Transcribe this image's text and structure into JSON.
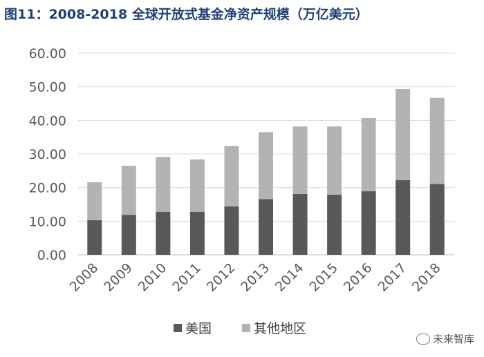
{
  "title": "图11：2008-2018 全球开放式基金净资产规模（万亿美元）",
  "watermark": "未来智库",
  "chart_data": {
    "type": "bar",
    "stacked": true,
    "title": "图11：2008-2018 全球开放式基金净资产规模（万亿美元）",
    "categories": [
      "2008",
      "2009",
      "2010",
      "2011",
      "2012",
      "2013",
      "2014",
      "2015",
      "2016",
      "2017",
      "2018"
    ],
    "series": [
      {
        "name": "美国",
        "color": "#595959",
        "values": [
          10.3,
          11.9,
          12.8,
          12.8,
          14.4,
          16.6,
          18.1,
          17.9,
          18.9,
          22.2,
          21.1
        ]
      },
      {
        "name": "其他地区",
        "color": "#b3b3b3",
        "values": [
          11.3,
          14.6,
          16.3,
          15.6,
          18.0,
          19.9,
          20.1,
          20.3,
          21.8,
          27.1,
          25.6
        ]
      }
    ],
    "yticks": [
      "0.00",
      "10.00",
      "20.00",
      "30.00",
      "40.00",
      "50.00",
      "60.00"
    ],
    "ylim": [
      0,
      60
    ],
    "grid": true,
    "legend_position": "bottom"
  }
}
